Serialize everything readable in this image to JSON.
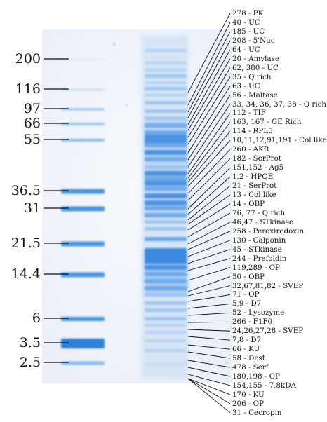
{
  "ladder": {
    "markers": [
      "200",
      "116",
      "97",
      "66",
      "55",
      "36.5",
      "31",
      "21.5",
      "14.4",
      "6",
      "3.5",
      "2.5"
    ]
  },
  "sample_bands": {
    "labels": [
      "278 - PK",
      "40 - UC",
      "185 - UC",
      "208 - 5'Nuc",
      "64 - UC",
      "20 - Amylase",
      "62, 380 - UC",
      "35 - Q rich",
      "63 - UC",
      "56 - Maltase",
      "33, 34, 36, 37, 38 - Q rich",
      "112 - TIF",
      "163, 167 - GE Rich",
      "114 - RPL5",
      "10,11,12,91,191 - Col like",
      "260 - AKR",
      "182 - SerProt",
      "151,152 - Ag5",
      "1,2 - HPQE",
      "21 - SerProt",
      "13 - Col like",
      "14 - OBP",
      "76, 77 - Q rich",
      "46,47 - STkinase",
      "258 - Peroxiredoxin",
      "130 - Calponin",
      "45 - STkinase",
      "244 - Prefoldin",
      "119,289 - OP",
      "50 - OBP",
      "32,67,81,82 - SVEP",
      "71 - OP",
      "5,9 - D7",
      "52 - Lysozyme",
      "266 - F1F0",
      "24,26,27,28 - SVEP",
      "7,8 - D7",
      "66 - KU",
      "58 - Dest",
      "478 - Serf",
      "180,198 - OP",
      "154,155 - 7.8kDA",
      "170 - KU",
      "206 - OP",
      "31 - Cecropin"
    ]
  }
}
